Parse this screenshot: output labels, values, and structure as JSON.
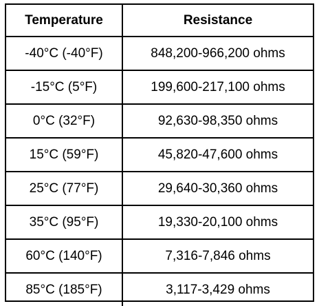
{
  "table": {
    "headers": [
      "Temperature",
      "Resistance"
    ],
    "rows": [
      [
        "-40°C (-40°F)",
        "848,200-966,200 ohms"
      ],
      [
        "-15°C (5°F)",
        "199,600-217,100 ohms"
      ],
      [
        "0°C (32°F)",
        "92,630-98,350 ohms"
      ],
      [
        "15°C (59°F)",
        "45,820-47,600 ohms"
      ],
      [
        "25°C (77°F)",
        "29,640-30,360 ohms"
      ],
      [
        "35°C (95°F)",
        "19,330-20,100 ohms"
      ],
      [
        "60°C (140°F)",
        "7,316-7,846 ohms"
      ],
      [
        "85°C (185°F)",
        "3,117-3,429 ohms"
      ]
    ]
  }
}
